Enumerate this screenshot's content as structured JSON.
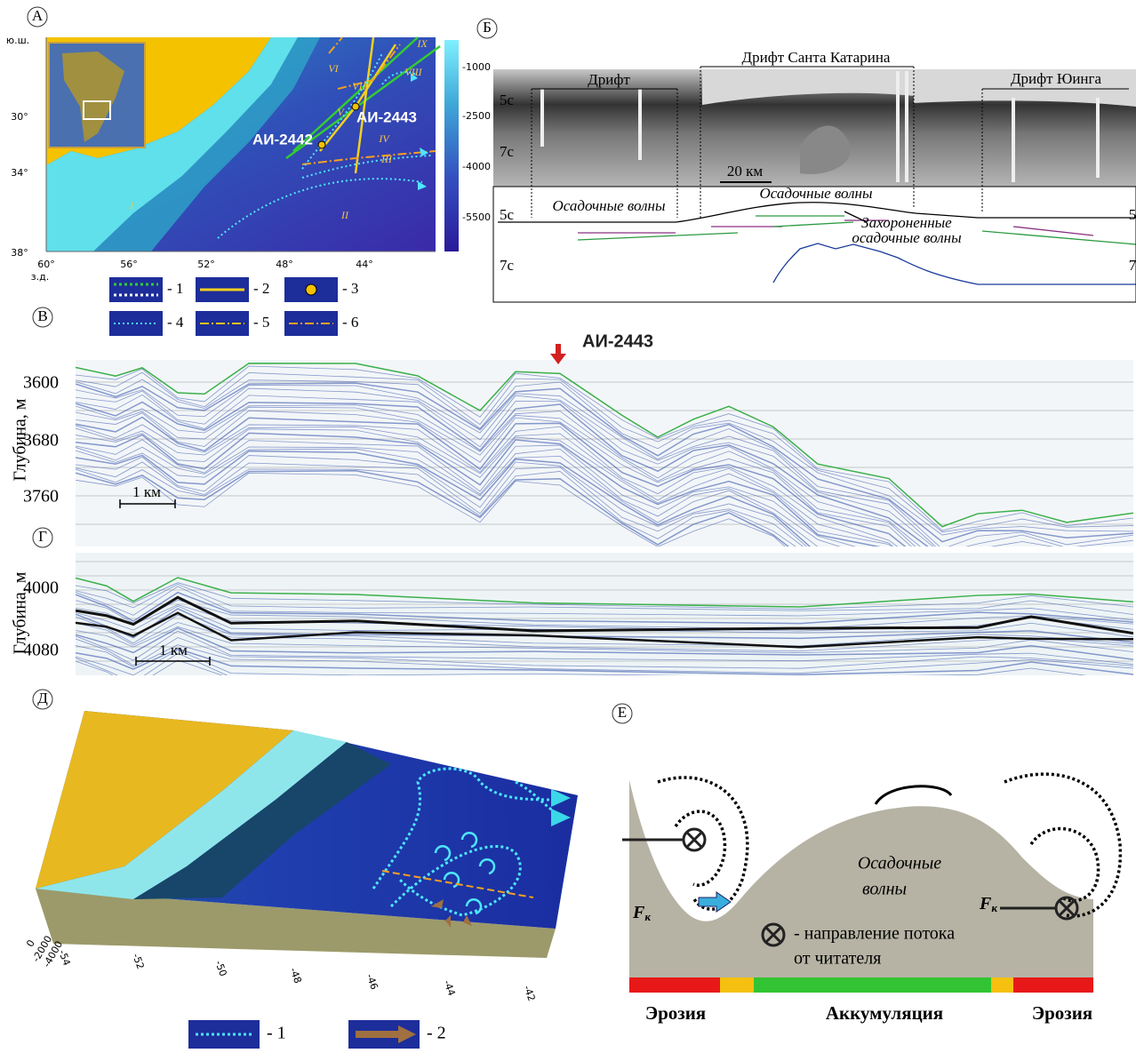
{
  "panel_a": {
    "label": "А",
    "lat_unit": "ю.ш.",
    "lat_ticks": [
      "30°",
      "34°",
      "38°"
    ],
    "lon_ticks": [
      "60°",
      "56°",
      "52°",
      "48°",
      "44°"
    ],
    "lon_unit": "з.д.",
    "regions": [
      "I",
      "II",
      "III",
      "IV",
      "V",
      "VI",
      "VII",
      "VIII",
      "IX"
    ],
    "stations": [
      "АИ-2442",
      "АИ-2443"
    ],
    "colorbar": [
      "-1000",
      "-2500",
      "-4000",
      "-5500"
    ],
    "legend": [
      "- 1",
      "- 2",
      "- 3",
      "- 4",
      "- 5",
      "- 6"
    ]
  },
  "panel_b": {
    "label": "Б",
    "drifts": [
      "Дрифт",
      "Дрифт Санта Катарина",
      "Дрифт Юинга"
    ],
    "time_marks": [
      "5с",
      "7с"
    ],
    "scale": "20 км",
    "interp_left": "Осадочные волны",
    "interp_center": "Осадочные волны",
    "buried": [
      "Захороненные",
      "осадочные волны"
    ],
    "interp_time_marks": [
      "5с",
      "7с",
      "5",
      "7"
    ]
  },
  "panel_v": {
    "label": "В",
    "station": "АИ-2443",
    "axis_label": "Глубина, м",
    "yticks": [
      "3600",
      "3680",
      "3760"
    ],
    "scale": "1 км"
  },
  "panel_g": {
    "label": "Г",
    "axis_label": "Глубина, м",
    "yticks": [
      "4000",
      "4080"
    ],
    "scale": "1 км"
  },
  "panel_d": {
    "label": "Д",
    "depth_ticks": [
      "0",
      "-2000",
      "-4000"
    ],
    "lon_ticks": [
      "-54",
      "-52",
      "-50",
      "-48",
      "-46",
      "-44",
      "-42"
    ],
    "legend": [
      "- 1",
      "- 2"
    ]
  },
  "panel_e": {
    "label": "Е",
    "waves": [
      "Осадочные",
      "волны"
    ],
    "force": "F",
    "force_sub": "к",
    "legend": [
      "- направление потока",
      "от читателя"
    ],
    "zones": [
      "Эрозия",
      "Аккумуляция",
      "Эрозия"
    ]
  }
}
